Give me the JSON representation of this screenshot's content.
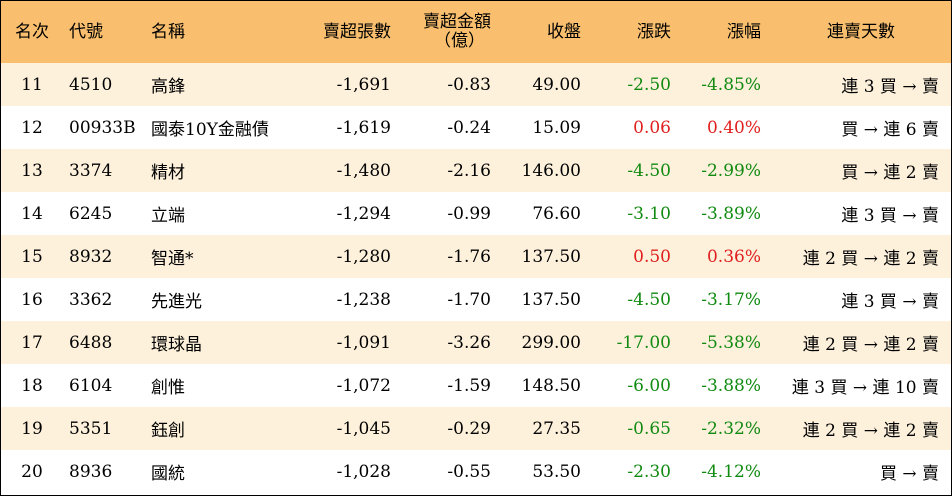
{
  "columns": {
    "rank": "名次",
    "code": "代號",
    "name": "名稱",
    "short_shares": "賣超張數",
    "short_amount": "賣超金額",
    "short_amount_unit": "（億）",
    "close": "收盤",
    "change": "漲跌",
    "pct": "漲幅",
    "streak": "連賣天數"
  },
  "rows": [
    {
      "rank": "11",
      "code": "4510",
      "name": "高鋒",
      "shares": "-1,691",
      "amount": "-0.83",
      "close": "49.00",
      "change": "-2.50",
      "pct": "-4.85%",
      "streak": "連 3 買 → 賣",
      "dir": "neg"
    },
    {
      "rank": "12",
      "code": "00933B",
      "name": "國泰10Y金融債",
      "shares": "-1,619",
      "amount": "-0.24",
      "close": "15.09",
      "change": "0.06",
      "pct": "0.40%",
      "streak": "買 → 連 6 賣",
      "dir": "pos"
    },
    {
      "rank": "13",
      "code": "3374",
      "name": "精材",
      "shares": "-1,480",
      "amount": "-2.16",
      "close": "146.00",
      "change": "-4.50",
      "pct": "-2.99%",
      "streak": "買 → 連 2 賣",
      "dir": "neg"
    },
    {
      "rank": "14",
      "code": "6245",
      "name": "立端",
      "shares": "-1,294",
      "amount": "-0.99",
      "close": "76.60",
      "change": "-3.10",
      "pct": "-3.89%",
      "streak": "連 3 買 → 賣",
      "dir": "neg"
    },
    {
      "rank": "15",
      "code": "8932",
      "name": "智通*",
      "shares": "-1,280",
      "amount": "-1.76",
      "close": "137.50",
      "change": "0.50",
      "pct": "0.36%",
      "streak": "連 2 買 → 連 2 賣",
      "dir": "pos"
    },
    {
      "rank": "16",
      "code": "3362",
      "name": "先進光",
      "shares": "-1,238",
      "amount": "-1.70",
      "close": "137.50",
      "change": "-4.50",
      "pct": "-3.17%",
      "streak": "連 3 買 → 賣",
      "dir": "neg"
    },
    {
      "rank": "17",
      "code": "6488",
      "name": "環球晶",
      "shares": "-1,091",
      "amount": "-3.26",
      "close": "299.00",
      "change": "-17.00",
      "pct": "-5.38%",
      "streak": "連 2 買 → 連 2 賣",
      "dir": "neg"
    },
    {
      "rank": "18",
      "code": "6104",
      "name": "創惟",
      "shares": "-1,072",
      "amount": "-1.59",
      "close": "148.50",
      "change": "-6.00",
      "pct": "-3.88%",
      "streak": "連 3 買 → 連 10 賣",
      "dir": "neg"
    },
    {
      "rank": "19",
      "code": "5351",
      "name": "鈺創",
      "shares": "-1,045",
      "amount": "-0.29",
      "close": "27.35",
      "change": "-0.65",
      "pct": "-2.32%",
      "streak": "連 2 買 → 連 2 賣",
      "dir": "neg"
    },
    {
      "rank": "20",
      "code": "8936",
      "name": "國統",
      "shares": "-1,028",
      "amount": "-0.55",
      "close": "53.50",
      "change": "-2.30",
      "pct": "-4.12%",
      "streak": "買 → 賣",
      "dir": "neg"
    }
  ]
}
